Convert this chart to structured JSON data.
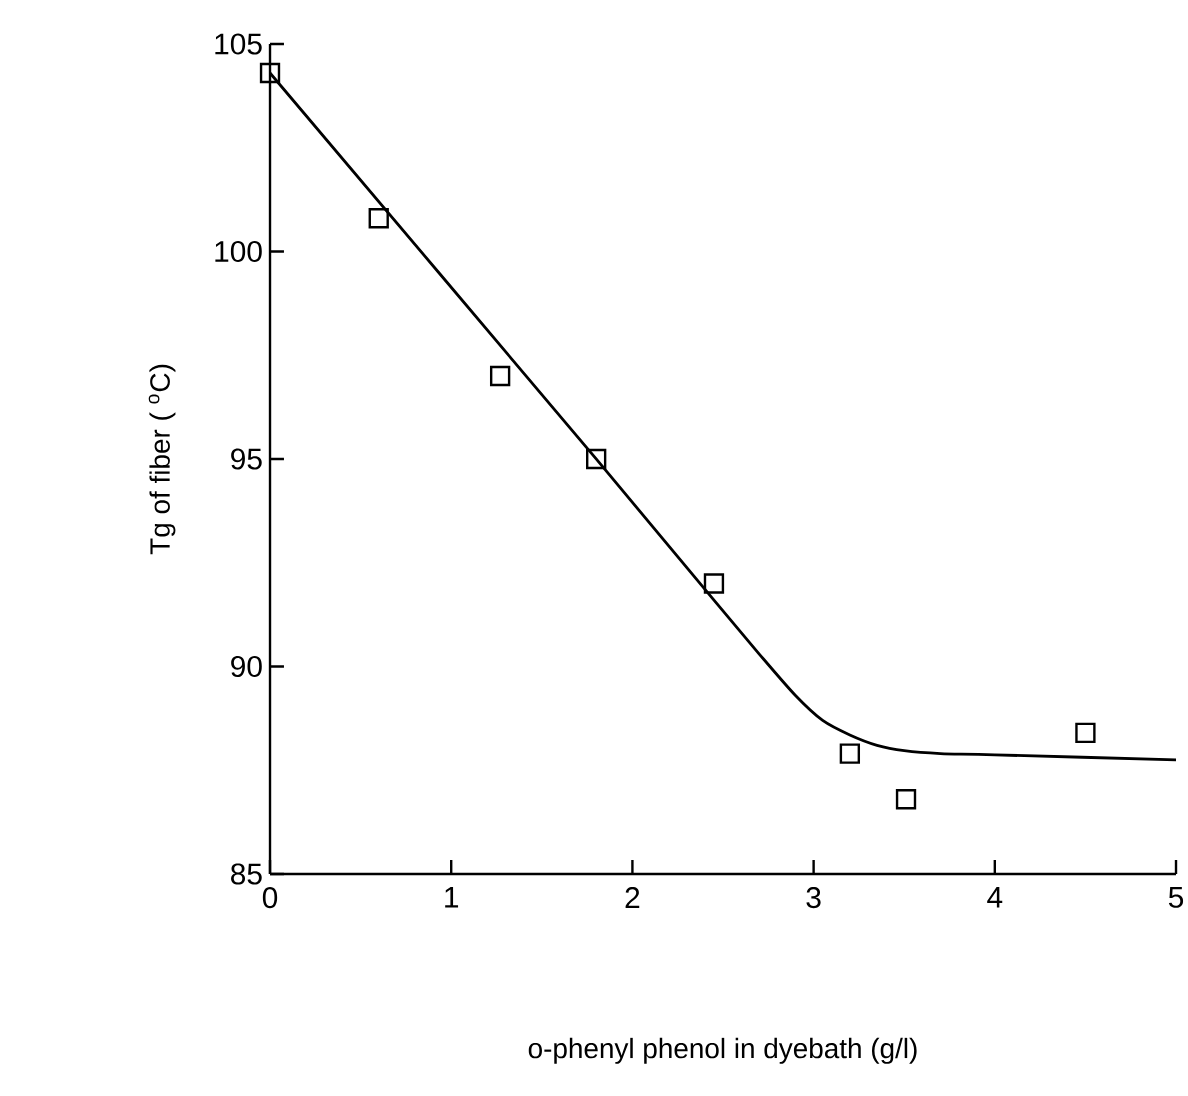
{
  "chart_data": {
    "type": "scatter",
    "xlabel": "o-phenyl phenol in dyebath (g/l)",
    "ylabel": "Tg of fiber ( $^{o}$C)",
    "xlim": [
      0,
      5
    ],
    "ylim": [
      85,
      105
    ],
    "xticks": [
      0,
      1,
      2,
      3,
      4,
      5
    ],
    "yticks": [
      85,
      90,
      95,
      100,
      105
    ],
    "grid": false,
    "series": [
      {
        "marker": "square",
        "color": "#000000",
        "x": [
          0,
          0.6,
          1.27,
          1.8,
          2.45,
          3.2,
          3.51,
          4.5
        ],
        "values": [
          104.3,
          100.8,
          97.0,
          95.0,
          92.0,
          87.9,
          86.8,
          88.4
        ]
      },
      {
        "type": "line",
        "marker": "none",
        "line_style": "solid",
        "color": "#000000",
        "x": [
          0,
          1.8,
          2.45,
          2.7,
          2.9,
          3.05,
          3.2,
          3.35,
          3.5,
          3.7,
          4.0,
          5.0
        ],
        "values": [
          104.3,
          95.0,
          91.6,
          90.3,
          89.3,
          88.7,
          88.35,
          88.1,
          87.97,
          87.9,
          87.87,
          87.75
        ]
      }
    ]
  }
}
